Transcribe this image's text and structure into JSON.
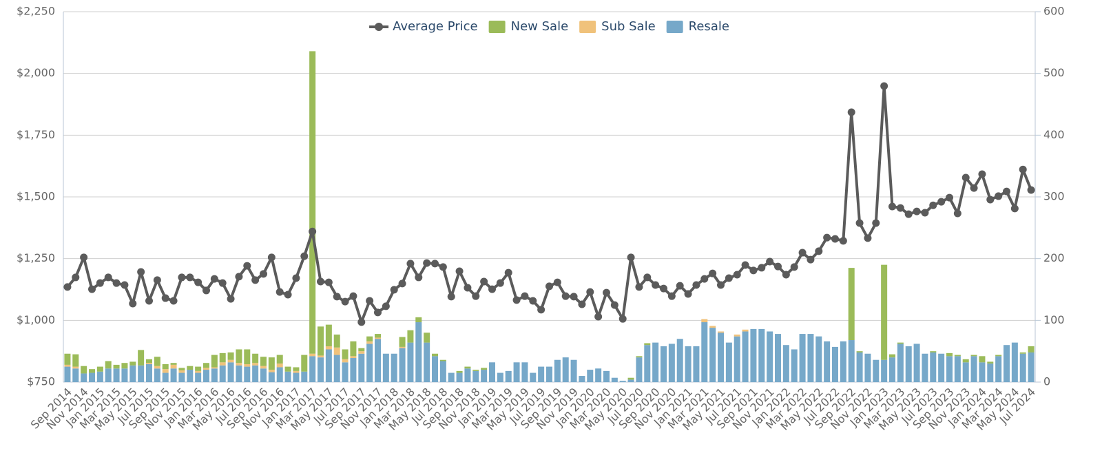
{
  "chart_data": {
    "type": "bar",
    "categories": [
      "Sep 2014",
      null,
      "Nov 2014",
      null,
      "Jan 2015",
      null,
      "Mar 2015",
      null,
      "May 2015",
      null,
      "Jul 2015",
      null,
      "Sep 2015",
      null,
      "Nov 2015",
      null,
      "Jan 2016",
      null,
      "Mar 2016",
      null,
      "May 2016",
      null,
      "Jul 2016",
      null,
      "Sep 2016",
      null,
      "Nov 2016",
      null,
      "Jan 2017",
      null,
      "Mar 2017",
      null,
      "May 2017",
      null,
      "Jul 2017",
      null,
      "Sep 2017",
      null,
      "Nov 2017",
      null,
      "Jan 2018",
      null,
      "Mar 2018",
      null,
      "May 2018",
      null,
      "Jul 2018",
      null,
      "Sep 2018",
      null,
      "Nov 2018",
      null,
      "Jan 2019",
      null,
      "Mar 2019",
      null,
      "May 2019",
      null,
      "Jul 2019",
      null,
      "Sep 2019",
      null,
      "Nov 2019",
      null,
      "Jan 2020",
      null,
      "Mar 2020",
      null,
      "May 2020",
      null,
      "Jul 2020",
      null,
      "Sep 2020",
      null,
      "Nov 2020",
      null,
      "Jan 2021",
      null,
      "Mar 2021",
      null,
      "May 2021",
      null,
      "Jul 2021",
      null,
      "Sep 2021",
      null,
      "Nov 2021",
      null,
      "Jan 2022",
      null,
      "Mar 2022",
      null,
      "May 2022",
      null,
      "Jul 2022",
      null,
      "Sep 2022",
      null,
      "Nov 2022",
      null,
      "Jan 2023",
      null,
      "Mar 2023",
      null,
      "May 2023",
      null,
      "Jul 2023",
      null,
      "Sep 2023",
      null,
      "Nov 2023",
      null,
      "Jan 2024",
      null,
      "Mar 2024",
      null,
      "May 2024",
      null,
      "Jul 2024"
    ],
    "series": [
      {
        "name": "Average Price",
        "type": "line",
        "axis": "y",
        "color": "#5b5b5b",
        "values": [
          1135,
          1174,
          1255,
          1126,
          1151,
          1174,
          1151,
          1143,
          1068,
          1196,
          1079,
          1163,
          1090,
          1079,
          1174,
          1174,
          1154,
          1121,
          1168,
          1151,
          1087,
          1177,
          1221,
          1163,
          1188,
          1255,
          1115,
          1104,
          1171,
          1260,
          1360,
          1157,
          1154,
          1096,
          1076,
          1098,
          993,
          1079,
          1032,
          1057,
          1124,
          1149,
          1230,
          1174,
          1232,
          1230,
          1216,
          1096,
          1199,
          1132,
          1098,
          1157,
          1126,
          1151,
          1193,
          1082,
          1098,
          1079,
          1043,
          1138,
          1154,
          1098,
          1096,
          1065,
          1115,
          1015,
          1112,
          1062,
          1006,
          1255,
          1135,
          1174,
          1143,
          1129,
          1098,
          1140,
          1107,
          1143,
          1168,
          1190,
          1143,
          1171,
          1185,
          1224,
          1202,
          1213,
          1238,
          1218,
          1185,
          1216,
          1274,
          1246,
          1280,
          1335,
          1330,
          1322,
          1843,
          1394,
          1333,
          1394,
          1949,
          1461,
          1455,
          1430,
          1441,
          1436,
          1466,
          1480,
          1497,
          1433,
          1578,
          1536,
          1592,
          1489,
          1503,
          1522,
          1453,
          1611,
          1528
        ]
      },
      {
        "name": "New Sale",
        "type": "bar",
        "axis": "y2",
        "color": "#9bbb59",
        "values": [
          18,
          20,
          12,
          6,
          8,
          12,
          6,
          9,
          6,
          25,
          6,
          15,
          8,
          3,
          4,
          6,
          7,
          8,
          20,
          15,
          12,
          22,
          24,
          15,
          15,
          20,
          14,
          8,
          6,
          27,
          490,
          47,
          35,
          21,
          16,
          24,
          5,
          8,
          6,
          0,
          0,
          16,
          20,
          8,
          16,
          4,
          2,
          0,
          3,
          3,
          2,
          3,
          0,
          0,
          0,
          0,
          0,
          0,
          0,
          0,
          0,
          0,
          0,
          0,
          0,
          0,
          0,
          0,
          0,
          3,
          2,
          3,
          0,
          0,
          0,
          0,
          0,
          0,
          0,
          0,
          0,
          0,
          0,
          0,
          0,
          0,
          0,
          0,
          0,
          0,
          0,
          0,
          0,
          0,
          0,
          0,
          117,
          2,
          0,
          0,
          154,
          5,
          2,
          0,
          0,
          0,
          2,
          0,
          5,
          2,
          5,
          2,
          10,
          3,
          2,
          0,
          0,
          2,
          10
        ]
      },
      {
        "name": "Sub Sale",
        "type": "bar",
        "axis": "y2",
        "color": "#f0c27b",
        "values": [
          3,
          3,
          0,
          0,
          0,
          0,
          0,
          0,
          0,
          0,
          2,
          4,
          6,
          6,
          4,
          0,
          3,
          3,
          2,
          5,
          4,
          4,
          4,
          4,
          4,
          4,
          6,
          0,
          3,
          0,
          4,
          3,
          5,
          12,
          5,
          3,
          4,
          4,
          2,
          0,
          0,
          2,
          0,
          0,
          0,
          0,
          0,
          0,
          0,
          0,
          0,
          0,
          0,
          0,
          0,
          0,
          0,
          0,
          0,
          0,
          0,
          0,
          0,
          0,
          0,
          0,
          0,
          0,
          0,
          0,
          0,
          0,
          0,
          0,
          0,
          0,
          0,
          0,
          5,
          3,
          2,
          0,
          3,
          3,
          0,
          0,
          0,
          0,
          0,
          0,
          0,
          0,
          0,
          0,
          0,
          0,
          0,
          0,
          0,
          0,
          0,
          0,
          0,
          0,
          0,
          0,
          0,
          0,
          0,
          0,
          0,
          0,
          0,
          0,
          0,
          0,
          0,
          0,
          0
        ]
      },
      {
        "name": "Resale",
        "type": "bar",
        "axis": "y2",
        "color": "#76a8c9",
        "values": [
          25,
          22,
          14,
          15,
          17,
          22,
          22,
          22,
          27,
          27,
          29,
          22,
          15,
          22,
          15,
          20,
          15,
          20,
          22,
          27,
          32,
          27,
          25,
          27,
          22,
          16,
          24,
          17,
          15,
          17,
          42,
          40,
          53,
          44,
          32,
          39,
          46,
          62,
          70,
          46,
          46,
          55,
          64,
          97,
          64,
          42,
          34,
          15,
          15,
          22,
          18,
          20,
          32,
          15,
          18,
          32,
          32,
          15,
          25,
          25,
          36,
          40,
          36,
          10,
          20,
          22,
          18,
          7,
          2,
          4,
          40,
          60,
          64,
          58,
          62,
          70,
          58,
          58,
          97,
          88,
          80,
          64,
          74,
          82,
          86,
          86,
          82,
          78,
          60,
          53,
          78,
          78,
          74,
          66,
          57,
          66,
          68,
          48,
          46,
          36,
          36,
          40,
          62,
          58,
          62,
          46,
          48,
          46,
          42,
          42,
          32,
          42,
          32,
          30,
          42,
          60,
          64,
          46,
          48
        ]
      }
    ],
    "ylim": [
      750,
      2250
    ],
    "yticks": [
      {
        "value": 750,
        "label": "$750"
      },
      {
        "value": 1000,
        "label": "$1,000"
      },
      {
        "value": 1250,
        "label": "$1,250"
      },
      {
        "value": 1500,
        "label": "$1,500"
      },
      {
        "value": 1750,
        "label": "$1,750"
      },
      {
        "value": 2000,
        "label": "$2,000"
      },
      {
        "value": 2250,
        "label": "$2,250"
      }
    ],
    "y2lim": [
      0,
      600
    ],
    "y2ticks": [
      0,
      100,
      200,
      300,
      400,
      500,
      600
    ],
    "grid": true,
    "legend": "top"
  }
}
